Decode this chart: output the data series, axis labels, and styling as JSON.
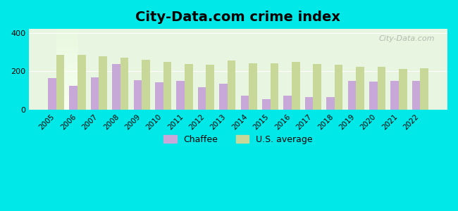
{
  "years": [
    2005,
    2006,
    2007,
    2008,
    2009,
    2010,
    2011,
    2012,
    2013,
    2014,
    2015,
    2016,
    2017,
    2018,
    2019,
    2020,
    2021,
    2022
  ],
  "chaffee": [
    165,
    125,
    168,
    238,
    155,
    143,
    150,
    118,
    135,
    75,
    55,
    72,
    68,
    68,
    150,
    148,
    152,
    152
  ],
  "us_average": [
    285,
    285,
    278,
    270,
    258,
    248,
    238,
    235,
    255,
    242,
    242,
    248,
    238,
    235,
    225,
    222,
    212,
    215
  ],
  "title": "City-Data.com crime index",
  "chaffee_color": "#c8a8d8",
  "us_avg_color": "#c8d898",
  "bg_color": "#00e8e8",
  "plot_bg_top": "#e8f8e0",
  "plot_bg_bottom": "#f0ffe8",
  "ylim": [
    0,
    420
  ],
  "yticks": [
    0,
    200,
    400
  ],
  "watermark": "City-Data.com",
  "legend_chaffee": "Chaffee",
  "legend_us": "U.S. average",
  "title_fontsize": 14,
  "bar_width": 0.38
}
